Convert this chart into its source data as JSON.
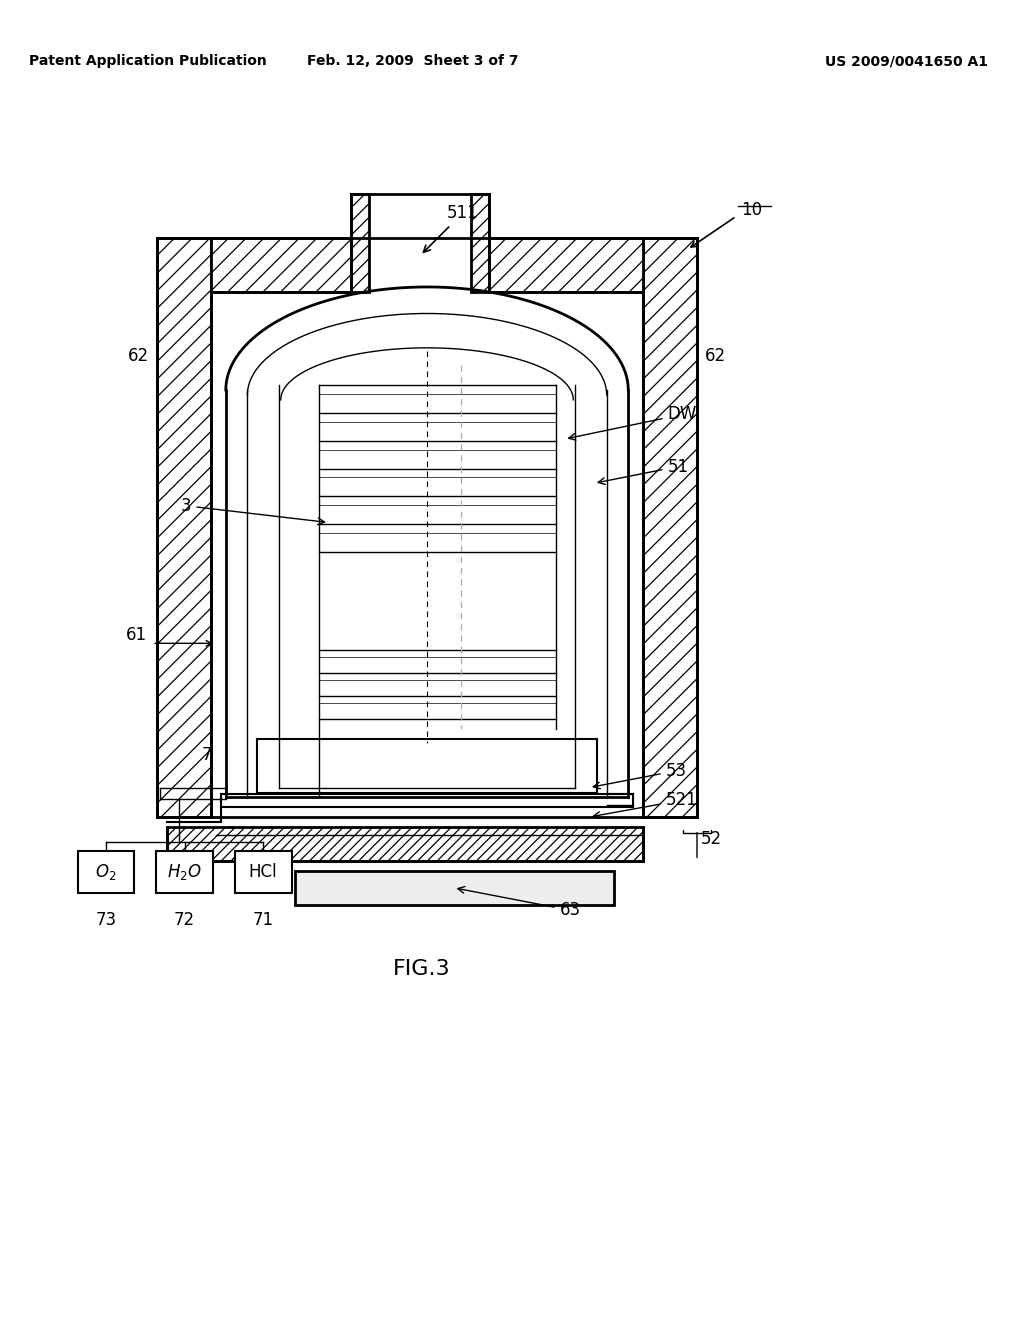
{
  "title": "FIG.3",
  "header_left": "Patent Application Publication",
  "header_center": "Feb. 12, 2009  Sheet 3 of 7",
  "header_right": "US 2009/0041650 A1",
  "bg_color": "#ffffff"
}
